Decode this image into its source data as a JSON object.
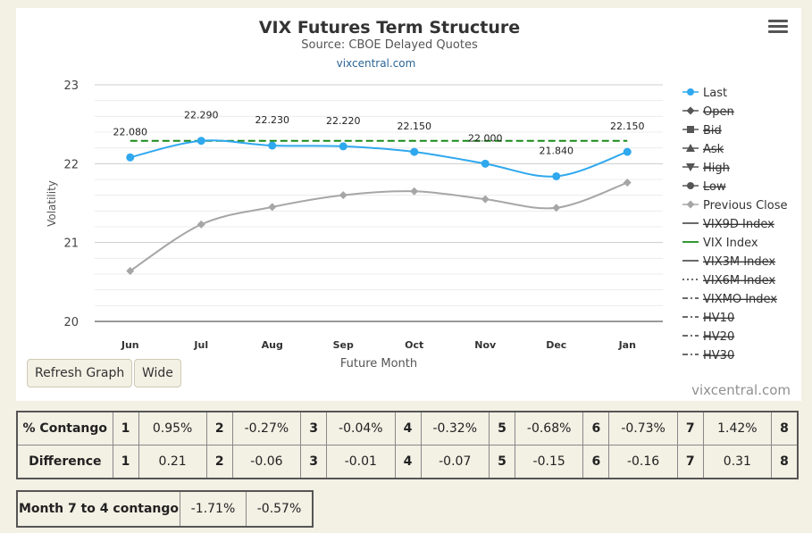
{
  "chart": {
    "title": "VIX Futures Term Structure",
    "subtitle": "Source: CBOE Delayed Quotes",
    "link": "vixcentral.com",
    "credits": "vixcentral.com",
    "ylabel": "Volatility",
    "xlabel": "Future Month",
    "buttons": {
      "refresh": "Refresh Graph",
      "wide": "Wide"
    }
  },
  "chart_data": {
    "type": "line",
    "title": "VIX Futures Term Structure",
    "subtitle": "Source: CBOE Delayed Quotes",
    "xlabel": "Future Month",
    "ylabel": "Volatility",
    "categories": [
      "Jun",
      "Jul",
      "Aug",
      "Sep",
      "Oct",
      "Nov",
      "Dec",
      "Jan"
    ],
    "ylim": [
      20,
      23
    ],
    "yticks": [
      20,
      21,
      22,
      23
    ],
    "grid": true,
    "legend_position": "right",
    "series": [
      {
        "name": "Last",
        "values": [
          22.08,
          22.29,
          22.23,
          22.22,
          22.15,
          22.0,
          21.84,
          22.15
        ],
        "labels": [
          "22.080",
          "22.290",
          "22.230",
          "22.220",
          "22.150",
          "22.000",
          "21.840",
          "22.150"
        ],
        "color": "#2fa8ee"
      },
      {
        "name": "Previous Close",
        "values": [
          20.64,
          21.23,
          21.45,
          21.6,
          21.65,
          21.55,
          21.44,
          21.76
        ],
        "color": "#a6a6a6"
      },
      {
        "name": "VIX Index",
        "values": [
          22.29,
          22.29,
          22.29,
          22.29,
          22.29,
          22.29,
          22.29,
          22.29
        ],
        "color": "#188a18",
        "dashed": true
      }
    ],
    "legend": [
      {
        "name": "Last",
        "hidden": false,
        "symbol": "circle",
        "color": "#2fa8ee"
      },
      {
        "name": "Open",
        "hidden": true,
        "symbol": "diamond",
        "color": "#555555"
      },
      {
        "name": "Bid",
        "hidden": true,
        "symbol": "square",
        "color": "#555555"
      },
      {
        "name": "Ask",
        "hidden": true,
        "symbol": "triangle",
        "color": "#555555"
      },
      {
        "name": "High",
        "hidden": true,
        "symbol": "triangle-down",
        "color": "#555555"
      },
      {
        "name": "Low",
        "hidden": true,
        "symbol": "circle",
        "color": "#555555"
      },
      {
        "name": "Previous Close",
        "hidden": false,
        "symbol": "diamond",
        "color": "#a6a6a6"
      },
      {
        "name": "VIX9D Index",
        "hidden": true,
        "symbol": "line",
        "color": "#555555"
      },
      {
        "name": "VIX Index",
        "hidden": false,
        "symbol": "line",
        "color": "#188a18"
      },
      {
        "name": "VIX3M Index",
        "hidden": true,
        "symbol": "line",
        "color": "#555555"
      },
      {
        "name": "VIX6M Index",
        "hidden": true,
        "symbol": "dotted",
        "color": "#555555"
      },
      {
        "name": "VIXMO Index",
        "hidden": true,
        "symbol": "dashdot",
        "color": "#555555"
      },
      {
        "name": "HV10",
        "hidden": true,
        "symbol": "dashdot",
        "color": "#555555"
      },
      {
        "name": "HV20",
        "hidden": true,
        "symbol": "dashdot",
        "color": "#555555"
      },
      {
        "name": "HV30",
        "hidden": true,
        "symbol": "dashdot",
        "color": "#555555"
      }
    ]
  },
  "tables": {
    "contango": {
      "header": "% Contango",
      "cells": [
        {
          "n": "1",
          "v": "0.95%"
        },
        {
          "n": "2",
          "v": "-0.27%"
        },
        {
          "n": "3",
          "v": "-0.04%"
        },
        {
          "n": "4",
          "v": "-0.32%"
        },
        {
          "n": "5",
          "v": "-0.68%"
        },
        {
          "n": "6",
          "v": "-0.73%"
        },
        {
          "n": "7",
          "v": "1.42%"
        }
      ],
      "last": "8"
    },
    "difference": {
      "header": "Difference",
      "cells": [
        {
          "n": "1",
          "v": "0.21"
        },
        {
          "n": "2",
          "v": "-0.06"
        },
        {
          "n": "3",
          "v": "-0.01"
        },
        {
          "n": "4",
          "v": "-0.07"
        },
        {
          "n": "5",
          "v": "-0.15"
        },
        {
          "n": "6",
          "v": "-0.16"
        },
        {
          "n": "7",
          "v": "0.31"
        }
      ],
      "last": "8"
    },
    "month7to4": {
      "header": "Month 7 to 4 contango",
      "v1": "-1.71%",
      "v2": "-0.57%"
    }
  }
}
